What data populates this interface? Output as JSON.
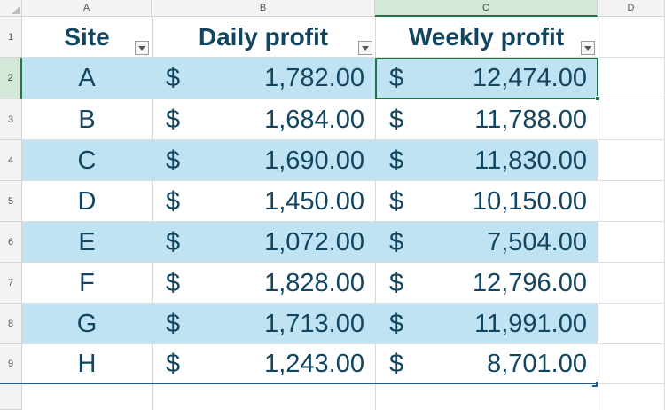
{
  "columns": [
    "A",
    "B",
    "C",
    "D"
  ],
  "row_numbers": [
    "1",
    "2",
    "3",
    "4",
    "5",
    "6",
    "7",
    "8",
    "9"
  ],
  "table": {
    "headers": [
      "Site",
      "Daily profit",
      "Weekly profit"
    ],
    "currency_symbol": "$",
    "rows": [
      {
        "site": "A",
        "daily": "1,782.00",
        "weekly": "12,474.00"
      },
      {
        "site": "B",
        "daily": "1,684.00",
        "weekly": "11,788.00"
      },
      {
        "site": "C",
        "daily": "1,690.00",
        "weekly": "11,830.00"
      },
      {
        "site": "D",
        "daily": "1,450.00",
        "weekly": "10,150.00"
      },
      {
        "site": "E",
        "daily": "1,072.00",
        "weekly": "7,504.00"
      },
      {
        "site": "F",
        "daily": "1,828.00",
        "weekly": "12,796.00"
      },
      {
        "site": "G",
        "daily": "1,713.00",
        "weekly": "11,991.00"
      },
      {
        "site": "H",
        "daily": "1,243.00",
        "weekly": "8,701.00"
      }
    ]
  },
  "active_cell": "C2",
  "colors": {
    "band": "#bfe3f2",
    "text": "#114560",
    "selection": "#217346"
  }
}
